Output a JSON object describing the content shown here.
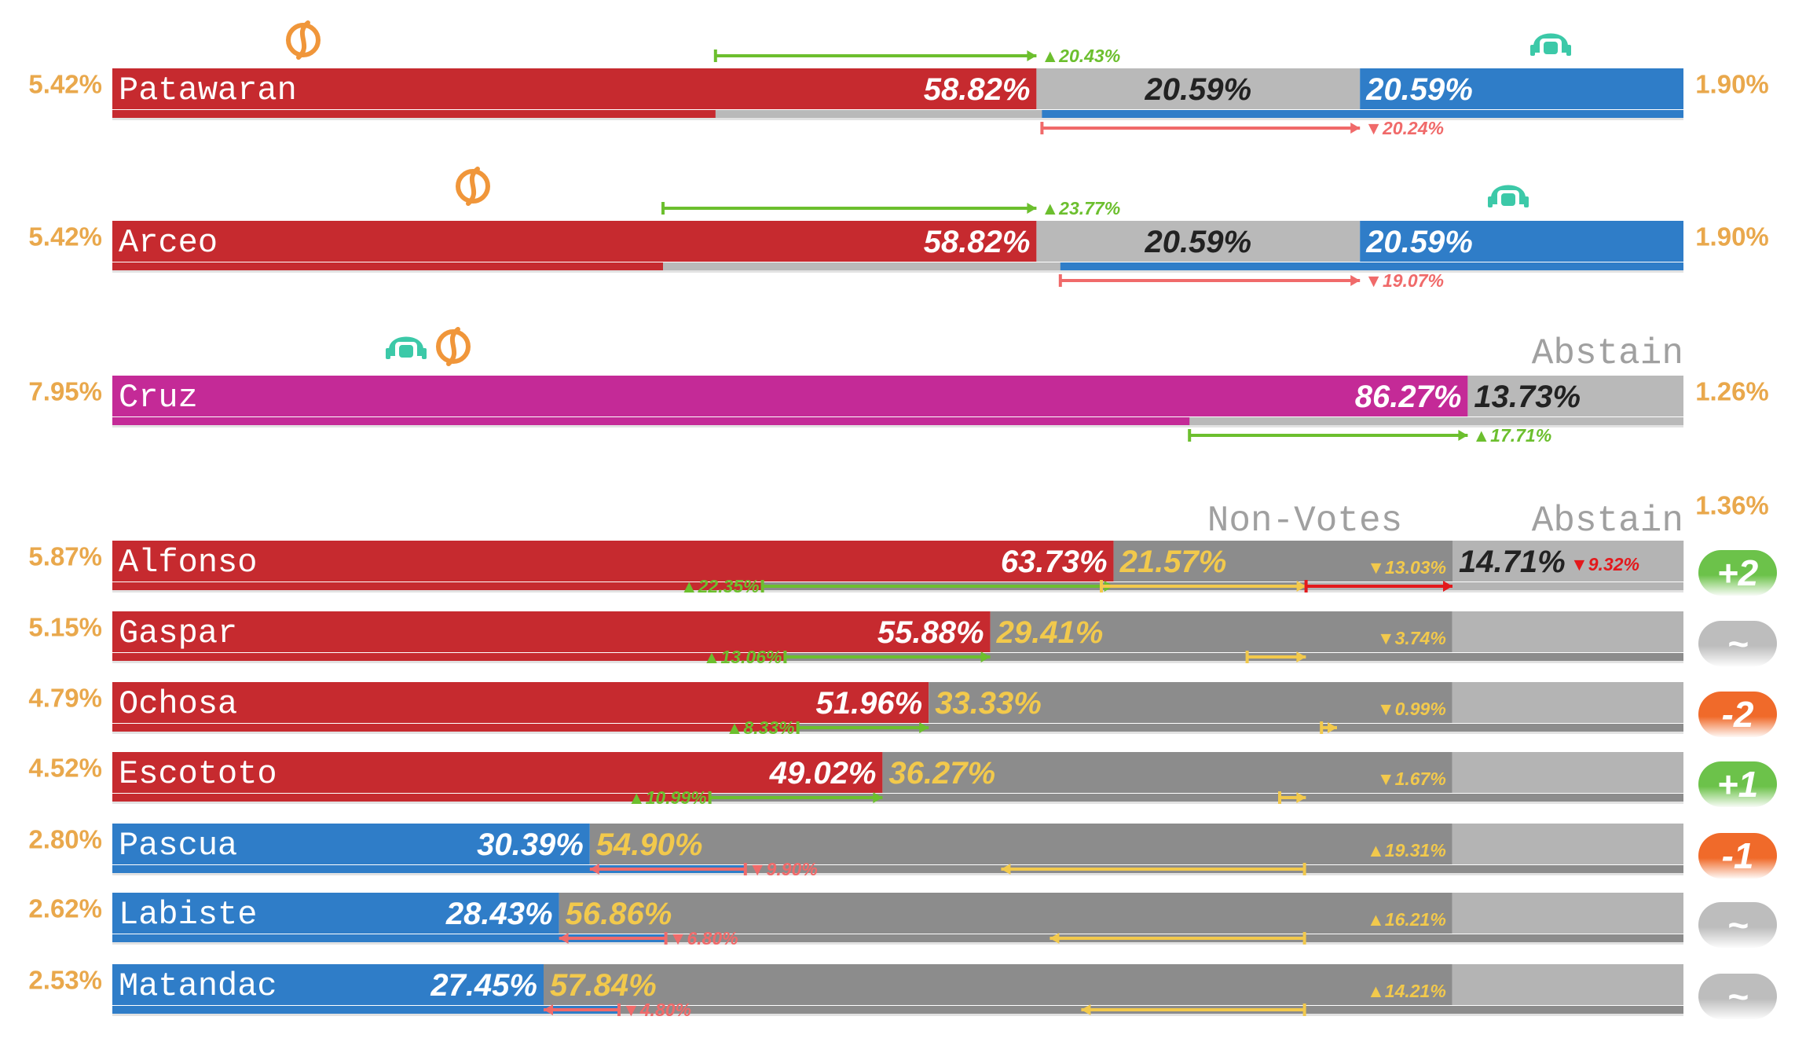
{
  "chart_data": {
    "type": "vote-bars",
    "xlim": [
      0,
      100
    ],
    "groups": [
      {
        "rows": [
          {
            "name": "Patawaran",
            "left": "5.42%",
            "right": "1.90%",
            "values": [
              58.82,
              20.59,
              20.59
            ],
            "value_labels": [
              "58.82%",
              "20.59%",
              "20.59%"
            ],
            "colors": [
              "#c62a2f",
              "#b9b9b9",
              "#2f7dc8"
            ],
            "label_colors": [
              "#ffffff",
              "#222222",
              "#ffffff"
            ],
            "changes": [
              20.43,
              null,
              -20.24
            ],
            "change_labels": [
              "▲20.43%",
              null,
              "▼20.24%"
            ],
            "change_colors": [
              "#6cbf2e",
              null,
              "#f06a6a"
            ]
          },
          {
            "name": "Arceo",
            "left": "5.42%",
            "right": "1.90%",
            "values": [
              58.82,
              20.59,
              20.59
            ],
            "value_labels": [
              "58.82%",
              "20.59%",
              "20.59%"
            ],
            "colors": [
              "#c62a2f",
              "#b9b9b9",
              "#2f7dc8"
            ],
            "label_colors": [
              "#ffffff",
              "#222222",
              "#ffffff"
            ],
            "changes": [
              23.77,
              null,
              -19.07
            ],
            "change_labels": [
              "▲23.77%",
              null,
              "▼19.07%"
            ],
            "change_colors": [
              "#6cbf2e",
              null,
              "#f06a6a"
            ]
          }
        ]
      },
      {
        "header": "Abstain",
        "rows": [
          {
            "name": "Cruz",
            "left": "7.95%",
            "right": "1.26%",
            "values": [
              86.27,
              13.73
            ],
            "value_labels": [
              "86.27%",
              "13.73%"
            ],
            "colors": [
              "#c42a97",
              "#b9b9b9"
            ],
            "label_colors": [
              "#ffffff",
              "#222222"
            ],
            "changes": [
              17.71,
              null
            ],
            "change_labels": [
              "▲17.71%",
              null
            ],
            "change_colors": [
              "#6cbf2e",
              null
            ]
          }
        ]
      },
      {
        "headers": [
          "Non-Votes",
          "Abstain"
        ],
        "right": "1.36%",
        "rows": [
          {
            "name": "Alfonso",
            "left": "5.87%",
            "badge": "+2",
            "badge_color": "#6cc24a",
            "values": [
              63.73,
              21.57,
              14.71
            ],
            "value_labels": [
              "63.73%",
              "21.57%",
              "14.71%"
            ],
            "colors": [
              "#c62a2f",
              "#8c8c8c",
              "#b4b4b4"
            ],
            "label_colors": [
              "#ffffff",
              "#f2c94c",
              "#222222"
            ],
            "changes": [
              22.35,
              -13.03,
              -9.32
            ],
            "change_labels": [
              "▲22.35%",
              "▼13.03%",
              "▼9.32%"
            ],
            "change_colors": [
              "#6cbf2e",
              "#f2c94c",
              "#e3191c"
            ]
          },
          {
            "name": "Gaspar",
            "left": "5.15%",
            "badge": "~",
            "badge_color": "#bdbdbd",
            "values": [
              55.88,
              29.41,
              14.71
            ],
            "value_labels": [
              "55.88%",
              "29.41%",
              null
            ],
            "colors": [
              "#c62a2f",
              "#8c8c8c",
              "#b4b4b4"
            ],
            "label_colors": [
              "#ffffff",
              "#f2c94c",
              "#222222"
            ],
            "changes": [
              13.06,
              -3.74,
              null
            ],
            "change_labels": [
              "▲13.06%",
              "▼3.74%",
              null
            ],
            "change_colors": [
              "#6cbf2e",
              "#f2c94c",
              null
            ]
          },
          {
            "name": "Ochosa",
            "left": "4.79%",
            "badge": "-2",
            "badge_color": "#f06a2a",
            "values": [
              51.96,
              33.33,
              14.71
            ],
            "value_labels": [
              "51.96%",
              "33.33%",
              null
            ],
            "colors": [
              "#c62a2f",
              "#8c8c8c",
              "#b4b4b4"
            ],
            "label_colors": [
              "#ffffff",
              "#f2c94c",
              "#222222"
            ],
            "changes": [
              8.33,
              -0.99,
              null
            ],
            "change_labels": [
              "▲8.33%",
              "▼0.99%",
              null
            ],
            "change_colors": [
              "#6cbf2e",
              "#f2c94c",
              null
            ]
          },
          {
            "name": "Escototo",
            "left": "4.52%",
            "badge": "+1",
            "badge_color": "#6cc24a",
            "values": [
              49.02,
              36.27,
              14.71
            ],
            "value_labels": [
              "49.02%",
              "36.27%",
              null
            ],
            "colors": [
              "#c62a2f",
              "#8c8c8c",
              "#b4b4b4"
            ],
            "label_colors": [
              "#ffffff",
              "#f2c94c",
              "#222222"
            ],
            "changes": [
              10.99,
              -1.67,
              null
            ],
            "change_labels": [
              "▲10.99%",
              "▼1.67%",
              null
            ],
            "change_colors": [
              "#6cbf2e",
              "#f2c94c",
              null
            ]
          },
          {
            "name": "Pascua",
            "left": "2.80%",
            "badge": "-1",
            "badge_color": "#f06a2a",
            "values": [
              30.39,
              54.9,
              14.71
            ],
            "value_labels": [
              "30.39%",
              "54.90%",
              null
            ],
            "colors": [
              "#2f7dc8",
              "#8c8c8c",
              "#b4b4b4"
            ],
            "label_colors": [
              "#ffffff",
              "#f2c94c",
              "#222222"
            ],
            "changes": [
              -9.9,
              19.31,
              null
            ],
            "change_labels": [
              "▼9.90%",
              "▲19.31%",
              null
            ],
            "change_colors": [
              "#f06a6a",
              "#f2c94c",
              null
            ]
          },
          {
            "name": "Labiste",
            "left": "2.62%",
            "badge": "~",
            "badge_color": "#bdbdbd",
            "values": [
              28.43,
              56.86,
              14.71
            ],
            "value_labels": [
              "28.43%",
              "56.86%",
              null
            ],
            "colors": [
              "#2f7dc8",
              "#8c8c8c",
              "#b4b4b4"
            ],
            "label_colors": [
              "#ffffff",
              "#f2c94c",
              "#222222"
            ],
            "changes": [
              -6.8,
              16.21,
              null
            ],
            "change_labels": [
              "▼6.80%",
              "▲16.21%",
              null
            ],
            "change_colors": [
              "#f06a6a",
              "#f2c94c",
              null
            ]
          },
          {
            "name": "Matandac",
            "left": "2.53%",
            "badge": "~",
            "badge_color": "#bdbdbd",
            "values": [
              27.45,
              57.84,
              14.71
            ],
            "value_labels": [
              "27.45%",
              "57.84%",
              null
            ],
            "colors": [
              "#2f7dc8",
              "#8c8c8c",
              "#b4b4b4"
            ],
            "label_colors": [
              "#ffffff",
              "#f2c94c",
              "#222222"
            ],
            "changes": [
              -4.8,
              14.21,
              null
            ],
            "change_labels": [
              "▼4.80%",
              "▲14.21%",
              null
            ],
            "change_colors": [
              "#f06a6a",
              "#f2c94c",
              null
            ]
          }
        ]
      }
    ]
  }
}
